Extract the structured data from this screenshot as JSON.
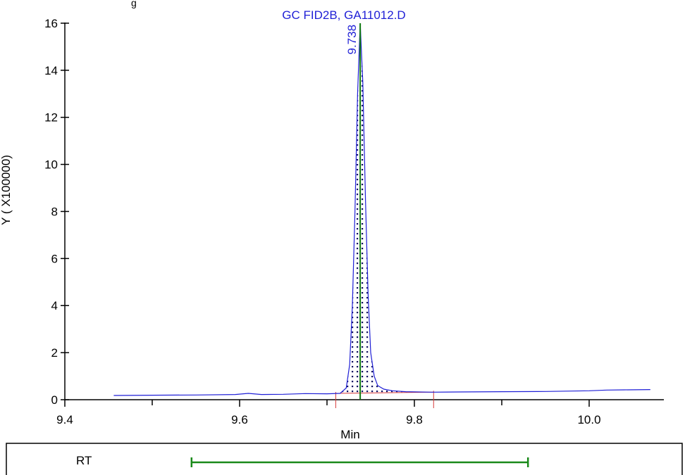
{
  "header_fragment": "g",
  "chart_data": {
    "type": "line",
    "title": "GC FID2B, GA11012.D",
    "xlabel": "Min",
    "ylabel": "Y ( X100000)",
    "xlim": [
      9.4,
      10.07
    ],
    "ylim": [
      0,
      16
    ],
    "x_major_ticks": [
      "9.4",
      "9.6",
      "9.8",
      "10.0"
    ],
    "x_minor_ticks": [
      9.5,
      9.7,
      9.9
    ],
    "y_ticks": [
      "0",
      "2",
      "4",
      "6",
      "8",
      "10",
      "12",
      "14",
      "16"
    ],
    "series": [
      {
        "x": [
          9.456,
          9.5,
          9.55,
          9.595,
          9.61,
          9.625,
          9.65,
          9.675,
          9.7,
          9.715,
          9.722,
          9.726,
          9.729,
          9.732,
          9.735,
          9.738,
          9.741,
          9.744,
          9.747,
          9.75,
          9.754,
          9.758,
          9.765,
          9.775,
          9.79,
          9.82,
          9.85,
          9.9,
          9.95,
          10.0,
          10.02,
          10.04,
          10.07
        ],
        "values": [
          0.18,
          0.19,
          0.2,
          0.22,
          0.27,
          0.22,
          0.23,
          0.26,
          0.25,
          0.27,
          0.5,
          1.5,
          4.0,
          8.0,
          13.0,
          16.0,
          13.5,
          8.5,
          4.5,
          2.0,
          1.0,
          0.6,
          0.45,
          0.38,
          0.34,
          0.32,
          0.33,
          0.34,
          0.35,
          0.38,
          0.41,
          0.42,
          0.43
        ]
      }
    ],
    "peak": {
      "label": "9.738",
      "x": 9.738,
      "y": 16.0
    },
    "integration_baseline": {
      "start": {
        "x": 9.71,
        "y": 0.27
      },
      "end": {
        "x": 9.822,
        "y": 0.32
      }
    },
    "rt_row": {
      "label": "RT",
      "range": [
        9.545,
        9.93
      ]
    },
    "colors": {
      "trace": "#1f1fd6",
      "peak_marker": "#117a11",
      "baseline": "#d63a3a",
      "axis": "#000000",
      "rt_bar": "#1a8a1a"
    }
  }
}
